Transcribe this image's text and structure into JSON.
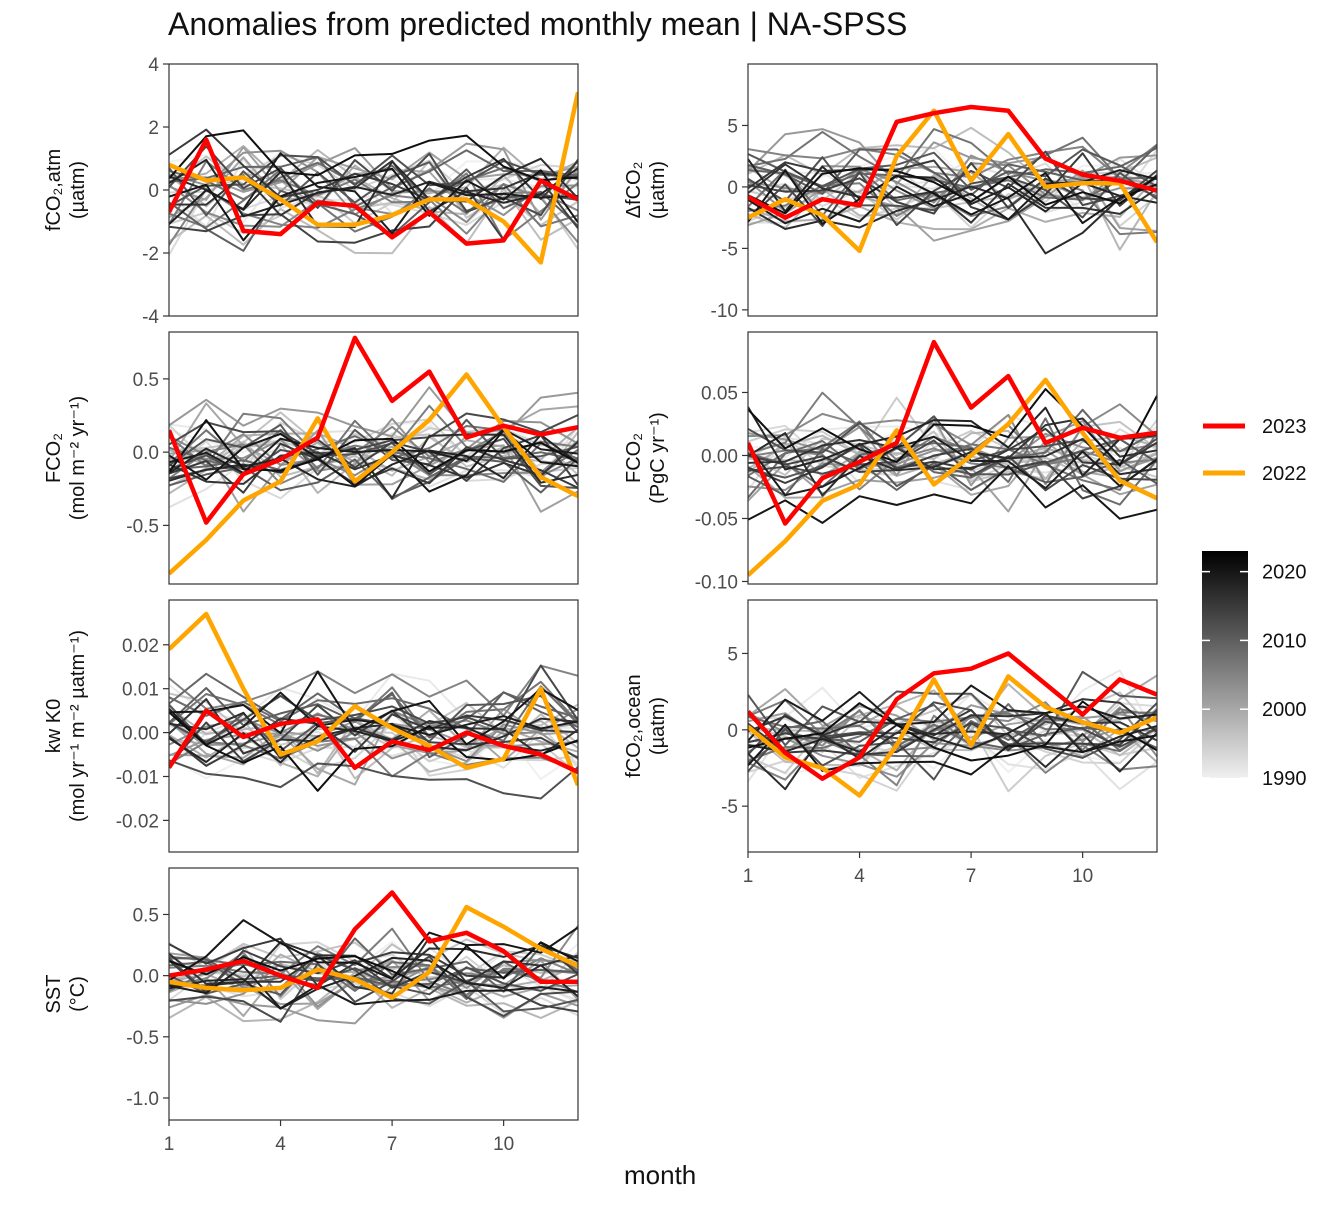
{
  "title": "Anomalies from predicted monthly mean | NA-SPSS",
  "x_axis_title": "month",
  "chart_data": {
    "type": "line",
    "title": "Anomalies from predicted monthly mean | NA-SPSS",
    "xlabel": "month",
    "x": [
      1,
      2,
      3,
      4,
      5,
      6,
      7,
      8,
      9,
      10,
      11,
      12
    ],
    "x_ticks": [
      1,
      4,
      7,
      10
    ],
    "legend": {
      "position": "right",
      "highlight": [
        {
          "name": "2023",
          "color": "#ff0000"
        },
        {
          "name": "2022",
          "color": "#ffa500"
        }
      ],
      "gradient": {
        "from": "#f0f0f0",
        "to": "#000000",
        "range": [
          1990,
          2023
        ],
        "ticks": [
          1990,
          2000,
          2010,
          2020
        ]
      }
    },
    "grey_years": [
      1990,
      2021
    ],
    "panels": [
      {
        "id": "fco2atm",
        "ylabel": [
          "fCO₂,atm",
          "(µatm)"
        ],
        "ylim": [
          -4,
          4
        ],
        "yticks": [
          -4,
          -2,
          0,
          2,
          4
        ],
        "series": [
          {
            "name": "2023",
            "values": [
              -0.7,
              1.6,
              -1.3,
              -1.4,
              -0.4,
              -0.5,
              -1.5,
              -0.7,
              -1.7,
              -1.6,
              0.3,
              -0.3
            ]
          },
          {
            "name": "2022",
            "values": [
              0.8,
              0.3,
              0.4,
              -0.3,
              -1.1,
              -1.1,
              -0.8,
              -0.3,
              -0.3,
              -1.0,
              -2.3,
              3.1
            ]
          }
        ]
      },
      {
        "id": "dfco2",
        "ylabel": [
          "ΔfCO₂",
          "(µatm)"
        ],
        "ylim": [
          -10.5,
          10
        ],
        "yticks": [
          -10,
          -5,
          0,
          5
        ],
        "series": [
          {
            "name": "2023",
            "values": [
              -0.8,
              -2.5,
              -1.0,
              -1.5,
              5.3,
              6.0,
              6.5,
              6.2,
              2.3,
              1.0,
              0.5,
              -0.3
            ]
          },
          {
            "name": "2022",
            "values": [
              -2.5,
              -1.0,
              -2.3,
              -5.2,
              2.5,
              6.2,
              0.5,
              4.3,
              0.0,
              0.3,
              0.3,
              -4.5
            ]
          }
        ]
      },
      {
        "id": "fco2flux",
        "ylabel": [
          "FCO₂",
          "(mol m⁻² yr⁻¹)"
        ],
        "ylim": [
          -0.9,
          0.82
        ],
        "yticks": [
          -0.5,
          0.0,
          0.5
        ],
        "series": [
          {
            "name": "2023",
            "values": [
              0.15,
              -0.48,
              -0.15,
              -0.05,
              0.1,
              0.78,
              0.35,
              0.55,
              0.1,
              0.18,
              0.12,
              0.17
            ]
          },
          {
            "name": "2022",
            "values": [
              -0.83,
              -0.6,
              -0.33,
              -0.2,
              0.23,
              -0.2,
              0.0,
              0.22,
              0.53,
              0.17,
              -0.17,
              -0.3
            ]
          }
        ]
      },
      {
        "id": "fco2pgc",
        "ylabel": [
          "FCO₂",
          "(PgC yr⁻¹)"
        ],
        "ylim": [
          -0.102,
          0.098
        ],
        "yticks": [
          -0.1,
          -0.05,
          0.0,
          0.05
        ],
        "series": [
          {
            "name": "2023",
            "values": [
              0.01,
              -0.054,
              -0.018,
              -0.005,
              0.01,
              0.09,
              0.038,
              0.063,
              0.01,
              0.022,
              0.014,
              0.018
            ]
          },
          {
            "name": "2022",
            "values": [
              -0.095,
              -0.068,
              -0.036,
              -0.023,
              0.02,
              -0.023,
              0.0,
              0.025,
              0.06,
              0.018,
              -0.02,
              -0.034
            ]
          }
        ]
      },
      {
        "id": "kwk0",
        "ylabel": [
          "kw K0",
          "(mol yr⁻¹ m⁻² µatm⁻¹)"
        ],
        "ylim": [
          -0.0272,
          0.0302
        ],
        "yticks": [
          -0.02,
          -0.01,
          0.0,
          0.01,
          0.02
        ],
        "series": [
          {
            "name": "2023",
            "values": [
              -0.008,
              0.005,
              -0.001,
              0.002,
              0.003,
              -0.008,
              -0.002,
              -0.004,
              0.0,
              -0.003,
              -0.005,
              -0.009
            ]
          },
          {
            "name": "2022",
            "values": [
              0.019,
              0.027,
              0.01,
              -0.005,
              -0.002,
              0.006,
              0.001,
              -0.003,
              -0.008,
              -0.006,
              0.01,
              -0.012
            ]
          }
        ]
      },
      {
        "id": "fco2ocean",
        "ylabel": [
          "fCO₂,ocean",
          "(µatm)"
        ],
        "ylim": [
          -8,
          8.5
        ],
        "yticks": [
          -5,
          0,
          5
        ],
        "series": [
          {
            "name": "2023",
            "values": [
              1.2,
              -1.5,
              -3.2,
              -1.8,
              2.0,
              3.7,
              4.0,
              5.0,
              3.0,
              1.0,
              3.3,
              2.3
            ]
          },
          {
            "name": "2022",
            "values": [
              0.2,
              -1.8,
              -2.5,
              -4.3,
              -1.0,
              3.3,
              -1.0,
              3.5,
              1.5,
              0.5,
              -0.2,
              0.8
            ]
          }
        ]
      },
      {
        "id": "sst",
        "ylabel": [
          "SST",
          "(°C)"
        ],
        "ylim": [
          -1.18,
          0.88
        ],
        "yticks": [
          -1.0,
          -0.5,
          0.0,
          0.5
        ],
        "series": [
          {
            "name": "2023",
            "values": [
              0.0,
              0.05,
              0.12,
              0.0,
              -0.1,
              0.38,
              0.68,
              0.28,
              0.35,
              0.2,
              -0.05,
              -0.05
            ]
          },
          {
            "name": "2022",
            "values": [
              -0.05,
              -0.1,
              -0.12,
              -0.1,
              0.05,
              -0.03,
              -0.18,
              0.03,
              0.56,
              0.4,
              0.22,
              0.08
            ]
          }
        ]
      }
    ]
  }
}
